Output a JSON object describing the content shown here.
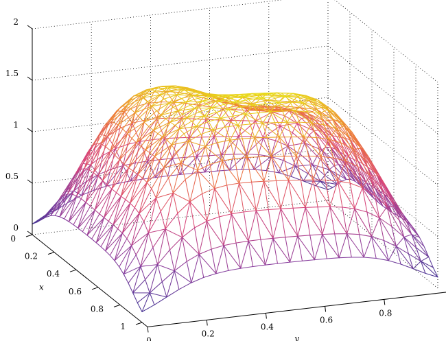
{
  "chart_data": {
    "type": "surface-mesh",
    "title": "",
    "xlabel": "x",
    "ylabel": "y",
    "zlabel": "",
    "xlim": [
      0,
      1
    ],
    "ylim": [
      0,
      1
    ],
    "zlim": [
      0,
      2
    ],
    "x_ticks": [
      {
        "value": 0,
        "label": "0"
      },
      {
        "value": 0.2,
        "label": "0.2"
      },
      {
        "value": 0.4,
        "label": "0.4"
      },
      {
        "value": 0.6,
        "label": "0.6"
      },
      {
        "value": 0.8,
        "label": "0.8"
      },
      {
        "value": 1,
        "label": "1"
      }
    ],
    "y_ticks": [
      {
        "value": 0,
        "label": "0"
      },
      {
        "value": 0.2,
        "label": "0.2"
      },
      {
        "value": 0.4,
        "label": "0.4"
      },
      {
        "value": 0.6,
        "label": "0.6"
      },
      {
        "value": 0.8,
        "label": "0.8"
      }
    ],
    "z_ticks": [
      {
        "value": 0,
        "label": "0"
      },
      {
        "value": 0.5,
        "label": "0.5"
      },
      {
        "value": 1,
        "label": "1"
      },
      {
        "value": 1.5,
        "label": "1.5"
      },
      {
        "value": 2,
        "label": "2"
      }
    ],
    "grid": true,
    "surface": {
      "description_of_shape": "plateau near z=1.7 over the interior, falling steeply to 0 at the boundary, with a depressed region toward small x and larger y",
      "plateau_height": 1.7,
      "min_height": 0,
      "peak_region": {
        "x": [
          0.15,
          0.85
        ],
        "y": [
          0.15,
          0.85
        ]
      },
      "mesh_resolution": 24
    },
    "colormap": {
      "low": "#2b2f8f",
      "mid_low": "#8a3f9e",
      "mid": "#d8457a",
      "mid_high": "#ee7a3a",
      "high": "#e8e214"
    }
  }
}
